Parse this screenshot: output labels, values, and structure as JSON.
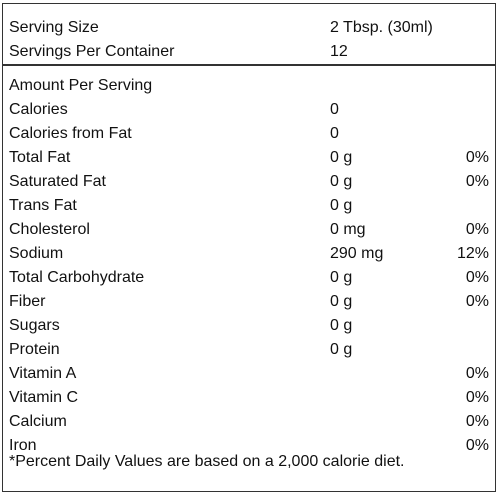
{
  "header": {
    "serving_size_label": "Serving Size",
    "serving_size_value": "2 Tbsp. (30ml)",
    "servings_per_container_label": "Servings Per Container",
    "servings_per_container_value": "12"
  },
  "amount_per_serving": "Amount Per Serving",
  "nutrients": [
    {
      "name": "Calories",
      "amount": "0",
      "dv": ""
    },
    {
      "name": "Calories from Fat",
      "amount": "0",
      "dv": ""
    },
    {
      "name": "Total Fat",
      "amount": "0 g",
      "dv": "0%"
    },
    {
      "name": "Saturated Fat",
      "amount": "0 g",
      "dv": "0%"
    },
    {
      "name": "Trans Fat",
      "amount": "0 g",
      "dv": ""
    },
    {
      "name": "Cholesterol",
      "amount": "0 mg",
      "dv": "0%"
    },
    {
      "name": "Sodium",
      "amount": "290 mg",
      "dv": "12%"
    },
    {
      "name": "Total Carbohydrate",
      "amount": "0 g",
      "dv": "0%"
    },
    {
      "name": "Fiber",
      "amount": "0 g",
      "dv": "0%"
    },
    {
      "name": "Sugars",
      "amount": "0 g",
      "dv": ""
    },
    {
      "name": "Protein",
      "amount": "0 g",
      "dv": ""
    },
    {
      "name": "Vitamin A",
      "amount": "",
      "dv": "0%"
    },
    {
      "name": "Vitamin C",
      "amount": "",
      "dv": "0%"
    },
    {
      "name": "Calcium",
      "amount": "",
      "dv": "0%"
    },
    {
      "name": "Iron",
      "amount": "",
      "dv": "0%"
    }
  ],
  "footnote": "*Percent Daily Values are based on a 2,000 calorie diet."
}
